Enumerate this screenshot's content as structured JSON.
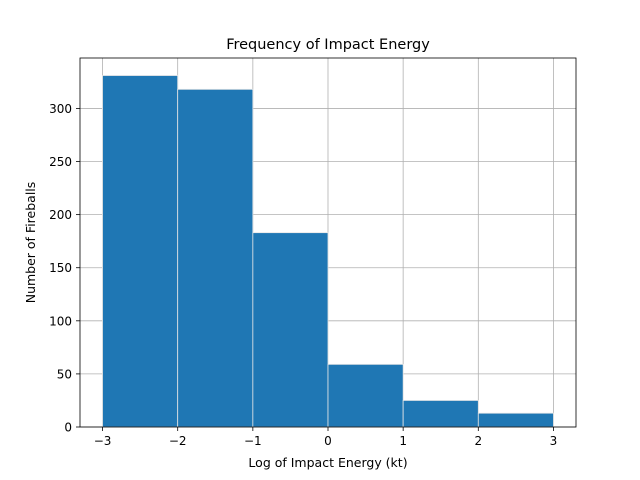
{
  "chart_data": {
    "type": "bar",
    "title": "Frequency of Impact Energy",
    "xlabel": "Log of Impact Energy (kt)",
    "ylabel": "Number of Fireballs",
    "bin_edges": [
      -3,
      -2,
      -1,
      0,
      1,
      2,
      3
    ],
    "values": [
      331,
      318,
      183,
      59,
      25,
      13
    ],
    "xlim": [
      -3.3,
      3.3
    ],
    "ylim": [
      0,
      347.5
    ],
    "xticks": [
      -3,
      -2,
      -1,
      0,
      1,
      2,
      3
    ],
    "xtick_labels": [
      "−3",
      "−2",
      "−1",
      "0",
      "1",
      "2",
      "3"
    ],
    "yticks": [
      0,
      50,
      100,
      150,
      200,
      250,
      300
    ],
    "ytick_labels": [
      "0",
      "50",
      "100",
      "150",
      "200",
      "250",
      "300"
    ],
    "grid": true,
    "bar_color": "#1f77b4"
  }
}
